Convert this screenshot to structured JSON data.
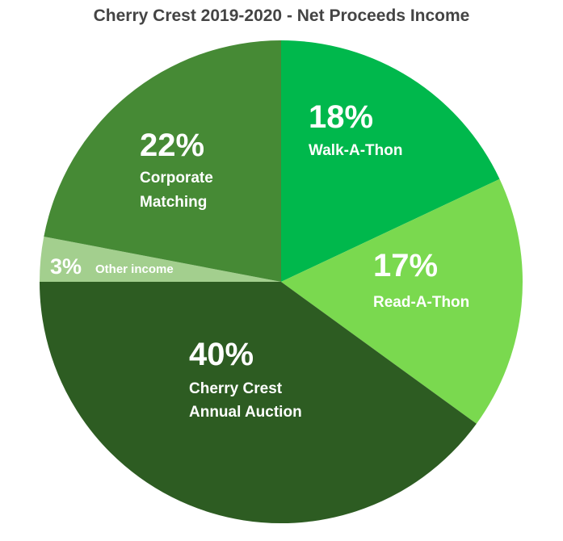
{
  "chart_data": {
    "type": "pie",
    "title": "Cherry Crest 2019-2020 - Net Proceeds Income",
    "slices": [
      {
        "pct_label": "18%",
        "label_lines": [
          "Walk-A-Thon"
        ],
        "value": 18,
        "color": "#00b84c"
      },
      {
        "pct_label": "17%",
        "label_lines": [
          "Read-A-Thon"
        ],
        "value": 17,
        "color": "#7ad94f"
      },
      {
        "pct_label": "40%",
        "label_lines": [
          "Cherry Crest",
          "Annual Auction"
        ],
        "value": 40,
        "color": "#2d5c22"
      },
      {
        "pct_label": "3%",
        "label_lines": [
          "Other income"
        ],
        "value": 3,
        "color": "#a3cf8e"
      },
      {
        "pct_label": "22%",
        "label_lines": [
          "Corporate",
          "Matching"
        ],
        "value": 22,
        "color": "#468a35"
      }
    ]
  }
}
